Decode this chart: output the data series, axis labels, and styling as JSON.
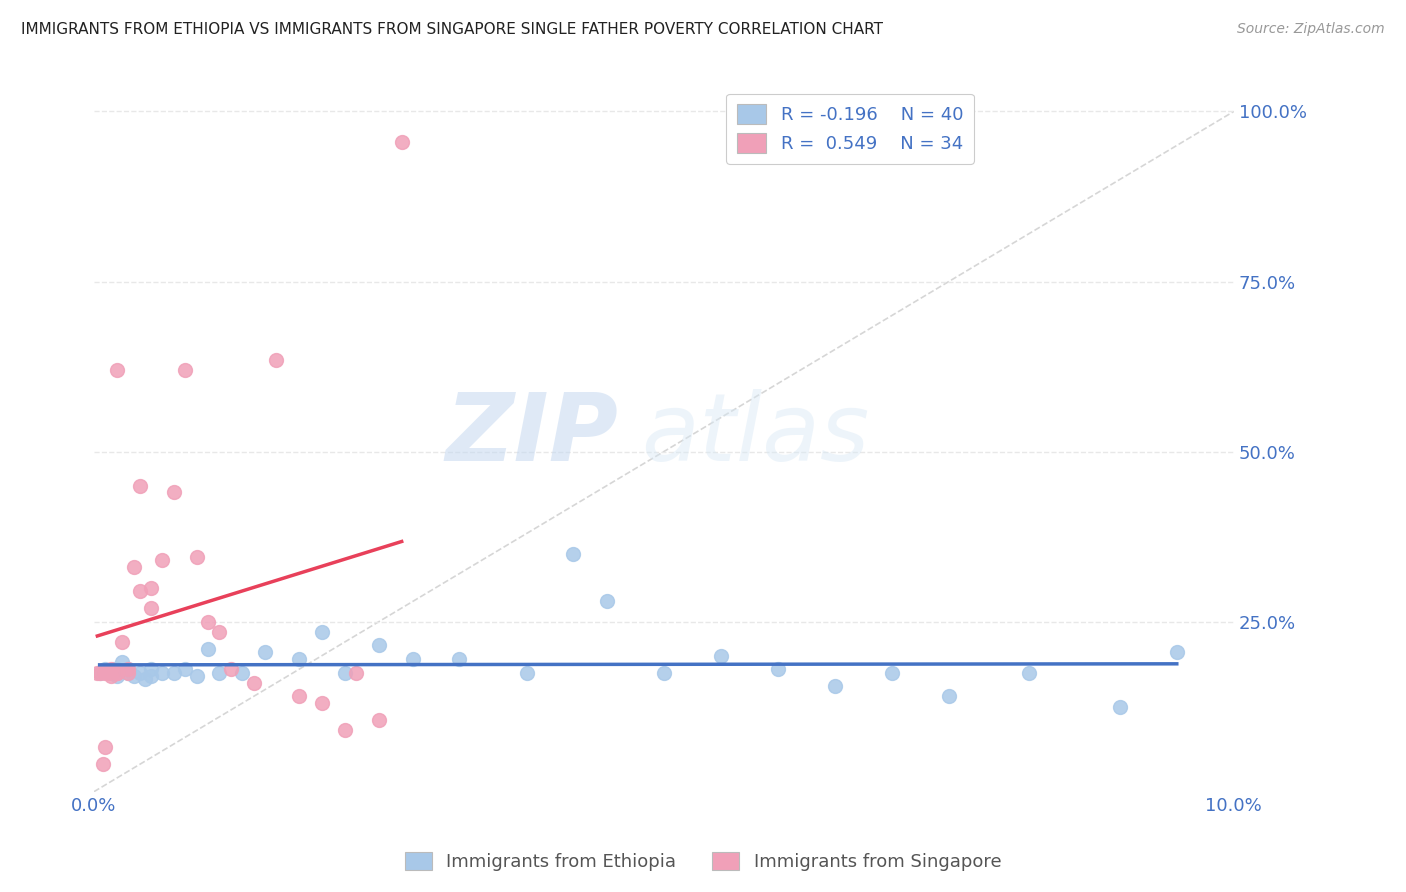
{
  "title": "IMMIGRANTS FROM ETHIOPIA VS IMMIGRANTS FROM SINGAPORE SINGLE FATHER POVERTY CORRELATION CHART",
  "source": "Source: ZipAtlas.com",
  "ylabel": "Single Father Poverty",
  "watermark_zip": "ZIP",
  "watermark_atlas": "atlas",
  "ethiopia_color": "#a8c8e8",
  "singapore_color": "#f0a0b8",
  "ethiopia_line_color": "#4472c4",
  "singapore_line_color": "#e8405a",
  "diag_line_color": "#cccccc",
  "grid_color": "#e8e8e8",
  "axis_label_color": "#4472c4",
  "title_color": "#222222",
  "legend_label_color": "#4472c4",
  "bottom_legend_color": "#555555",
  "source_color": "#999999",
  "ylabel_color": "#555555",
  "ethiopia_x": [
    0.0005,
    0.001,
    0.0015,
    0.0018,
    0.002,
    0.002,
    0.0025,
    0.003,
    0.003,
    0.0035,
    0.004,
    0.0045,
    0.005,
    0.005,
    0.006,
    0.007,
    0.008,
    0.009,
    0.01,
    0.011,
    0.013,
    0.015,
    0.018,
    0.02,
    0.022,
    0.025,
    0.028,
    0.032,
    0.038,
    0.042,
    0.045,
    0.05,
    0.055,
    0.06,
    0.065,
    0.07,
    0.075,
    0.082,
    0.09,
    0.095
  ],
  "ethiopia_y": [
    0.175,
    0.18,
    0.175,
    0.18,
    0.18,
    0.17,
    0.19,
    0.175,
    0.18,
    0.17,
    0.175,
    0.165,
    0.17,
    0.18,
    0.175,
    0.175,
    0.18,
    0.17,
    0.21,
    0.175,
    0.175,
    0.205,
    0.195,
    0.235,
    0.175,
    0.215,
    0.195,
    0.195,
    0.175,
    0.35,
    0.28,
    0.175,
    0.2,
    0.18,
    0.155,
    0.175,
    0.14,
    0.175,
    0.125,
    0.205
  ],
  "singapore_x": [
    0.0003,
    0.0005,
    0.0008,
    0.001,
    0.001,
    0.0012,
    0.0015,
    0.0015,
    0.002,
    0.002,
    0.002,
    0.0025,
    0.003,
    0.003,
    0.0035,
    0.004,
    0.004,
    0.005,
    0.005,
    0.006,
    0.007,
    0.008,
    0.009,
    0.01,
    0.011,
    0.012,
    0.014,
    0.016,
    0.018,
    0.02,
    0.022,
    0.023,
    0.025,
    0.027
  ],
  "singapore_y": [
    0.175,
    0.175,
    0.04,
    0.175,
    0.065,
    0.175,
    0.18,
    0.17,
    0.62,
    0.175,
    0.175,
    0.22,
    0.175,
    0.18,
    0.33,
    0.295,
    0.45,
    0.3,
    0.27,
    0.34,
    0.44,
    0.62,
    0.345,
    0.25,
    0.235,
    0.18,
    0.16,
    0.635,
    0.14,
    0.13,
    0.09,
    0.175,
    0.105,
    0.955
  ],
  "xlim": [
    0,
    0.1
  ],
  "ylim": [
    0,
    1.05
  ],
  "xtick_positions": [
    0.0,
    0.1
  ],
  "xtick_labels": [
    "0.0%",
    "10.0%"
  ],
  "ytick_positions": [
    0.25,
    0.5,
    0.75,
    1.0
  ],
  "ytick_labels": [
    "25.0%",
    "50.0%",
    "75.0%",
    "100.0%"
  ]
}
